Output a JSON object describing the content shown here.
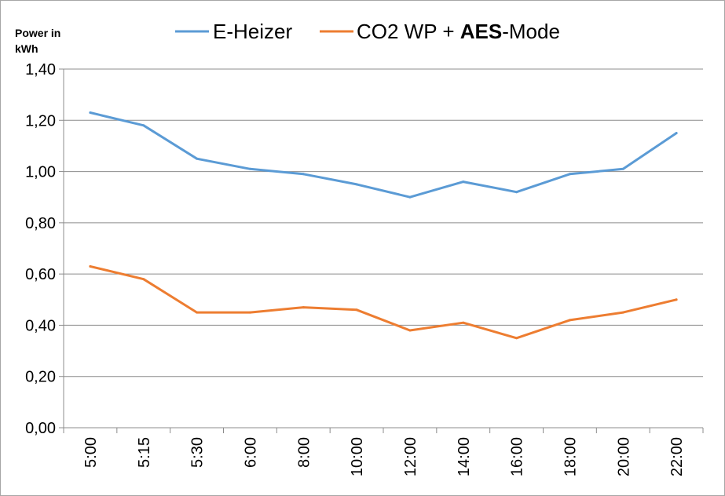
{
  "chart_data": {
    "type": "line",
    "title": "",
    "ylabel": "Power in kWh",
    "ylabel_lines": [
      "Power in",
      "kWh"
    ],
    "xlabel": "",
    "categories": [
      "5:00",
      "5:15",
      "5:30",
      "6:00",
      "8:00",
      "10:00",
      "12:00",
      "14:00",
      "16:00",
      "18:00",
      "20:00",
      "22:00"
    ],
    "yticks": [
      "0,00",
      "0,20",
      "0,40",
      "0,60",
      "0,80",
      "1,00",
      "1,20",
      "1,40"
    ],
    "ylim": [
      0,
      1.4
    ],
    "grid": true,
    "legend_position": "top",
    "series": [
      {
        "name": "E-Heizer",
        "color": "#5b9bd5",
        "values": [
          1.23,
          1.18,
          1.05,
          1.01,
          0.99,
          0.95,
          0.9,
          0.96,
          0.92,
          0.99,
          1.01,
          1.15
        ]
      },
      {
        "name": "CO2 WP + AES-Mode",
        "name_parts": [
          "CO2 WP + ",
          "AES",
          "-Mode"
        ],
        "color": "#ed7d31",
        "values": [
          0.63,
          0.58,
          0.45,
          0.45,
          0.47,
          0.46,
          0.38,
          0.41,
          0.35,
          0.42,
          0.45,
          0.5
        ]
      }
    ]
  }
}
